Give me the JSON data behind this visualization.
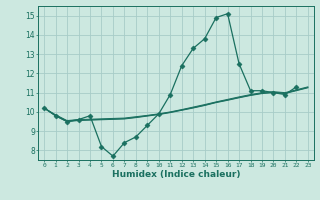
{
  "xlabel": "Humidex (Indice chaleur)",
  "bg_color": "#cce8e0",
  "grid_color": "#a8ccc8",
  "line_color": "#1a7060",
  "xlim": [
    -0.5,
    23.5
  ],
  "ylim": [
    7.5,
    15.5
  ],
  "xticks": [
    0,
    1,
    2,
    3,
    4,
    5,
    6,
    7,
    8,
    9,
    10,
    11,
    12,
    13,
    14,
    15,
    16,
    17,
    18,
    19,
    20,
    21,
    22,
    23
  ],
  "yticks": [
    8,
    9,
    10,
    11,
    12,
    13,
    14,
    15
  ],
  "series": [
    {
      "x": [
        0,
        1,
        2,
        3,
        4,
        5,
        6,
        7,
        8,
        9,
        10,
        11,
        12,
        13,
        14,
        15,
        16,
        17,
        18,
        19,
        20,
        21,
        22
      ],
      "y": [
        10.2,
        9.8,
        9.5,
        9.6,
        9.8,
        8.2,
        7.7,
        8.4,
        8.7,
        9.3,
        9.9,
        10.9,
        12.4,
        13.3,
        13.8,
        14.9,
        15.1,
        12.5,
        11.1,
        11.1,
        11.0,
        10.9,
        11.3
      ],
      "marker": "D",
      "markersize": 2.5,
      "linewidth": 0.9
    },
    {
      "x": [
        0,
        1,
        2,
        3,
        4,
        5,
        6,
        7,
        8,
        9,
        10,
        11,
        12,
        13,
        14,
        15,
        16,
        17,
        18,
        19,
        20,
        21,
        22,
        23
      ],
      "y": [
        10.2,
        9.85,
        9.55,
        9.6,
        9.62,
        9.64,
        9.66,
        9.68,
        9.75,
        9.82,
        9.9,
        10.0,
        10.12,
        10.25,
        10.38,
        10.52,
        10.65,
        10.78,
        10.9,
        11.0,
        11.05,
        11.0,
        11.15,
        11.3
      ],
      "marker": null,
      "markersize": 0,
      "linewidth": 0.7
    },
    {
      "x": [
        0,
        1,
        2,
        3,
        4,
        5,
        6,
        7,
        8,
        9,
        10,
        11,
        12,
        13,
        14,
        15,
        16,
        17,
        18,
        19,
        20,
        21,
        22,
        23
      ],
      "y": [
        10.2,
        9.82,
        9.52,
        9.57,
        9.59,
        9.61,
        9.63,
        9.65,
        9.72,
        9.8,
        9.88,
        9.98,
        10.1,
        10.22,
        10.35,
        10.5,
        10.62,
        10.75,
        10.87,
        10.97,
        11.02,
        10.97,
        11.12,
        11.27
      ],
      "marker": null,
      "markersize": 0,
      "linewidth": 0.7
    },
    {
      "x": [
        0,
        1,
        2,
        3,
        4,
        5,
        6,
        7,
        8,
        9,
        10,
        11,
        12,
        13,
        14,
        15,
        16,
        17,
        18,
        19,
        20,
        21,
        22,
        23
      ],
      "y": [
        10.2,
        9.79,
        9.49,
        9.55,
        9.57,
        9.59,
        9.61,
        9.63,
        9.7,
        9.78,
        9.86,
        9.96,
        10.08,
        10.2,
        10.33,
        10.48,
        10.6,
        10.73,
        10.85,
        10.95,
        11.0,
        10.95,
        11.1,
        11.25
      ],
      "marker": null,
      "markersize": 0,
      "linewidth": 0.7
    }
  ]
}
